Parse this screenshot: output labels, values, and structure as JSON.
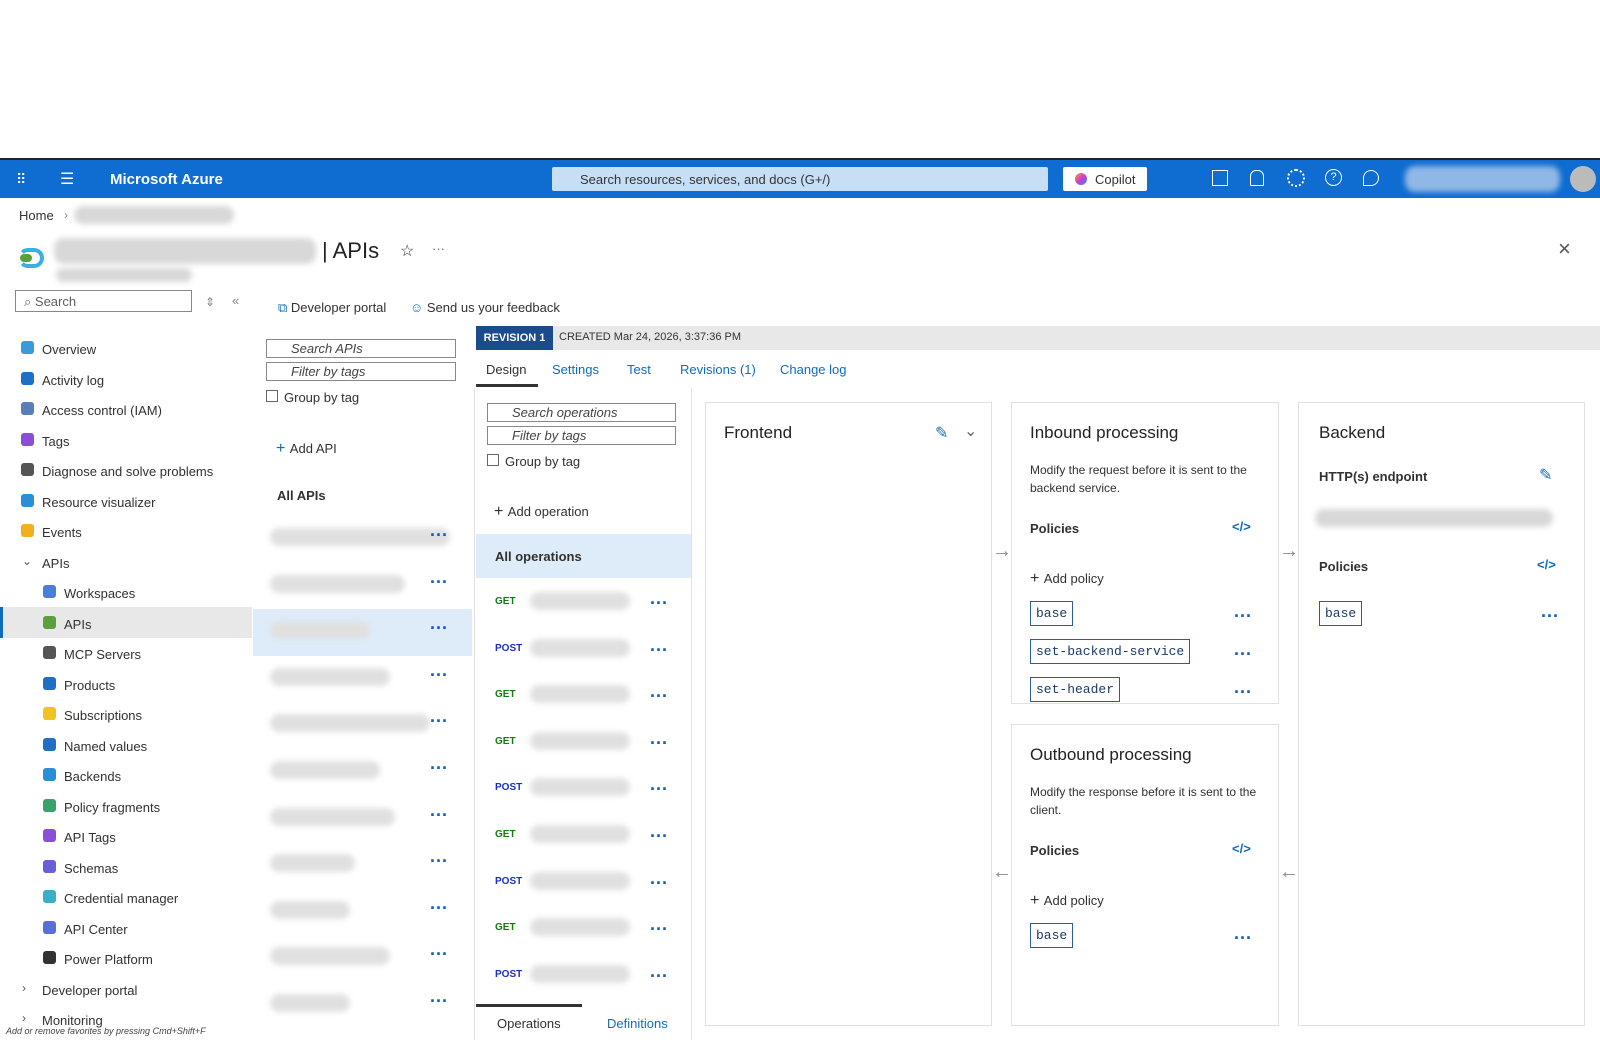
{
  "topbar": {
    "brand": "Microsoft Azure",
    "search": "Search resources, services, and docs (G+/)",
    "copilot": "Copilot"
  },
  "breadcrumb": {
    "home": "Home"
  },
  "header": {
    "title": "| APIs"
  },
  "sidebar": {
    "search": "Search",
    "items": [
      {
        "label": "Overview",
        "level": 0,
        "color": "#3a9bdc"
      },
      {
        "label": "Activity log",
        "level": 0,
        "color": "#1f6fc5"
      },
      {
        "label": "Access control (IAM)",
        "level": 0,
        "color": "#5a7fb8"
      },
      {
        "label": "Tags",
        "level": 0,
        "color": "#8a4fd6"
      },
      {
        "label": "Diagnose and solve problems",
        "level": 0,
        "color": "#555555"
      },
      {
        "label": "Resource visualizer",
        "level": 0,
        "color": "#2a8fd6"
      },
      {
        "label": "Events",
        "level": 0,
        "color": "#f2b01e"
      },
      {
        "label": "APIs",
        "level": 0,
        "color": null
      },
      {
        "label": "Workspaces",
        "level": 1,
        "color": "#4a7fd6"
      },
      {
        "label": "APIs",
        "level": 1,
        "color": "#5aa03c"
      },
      {
        "label": "MCP Servers",
        "level": 1,
        "color": "#555555"
      },
      {
        "label": "Products",
        "level": 1,
        "color": "#1f6fc5"
      },
      {
        "label": "Subscriptions",
        "level": 1,
        "color": "#f2c21e"
      },
      {
        "label": "Named values",
        "level": 1,
        "color": "#1f6fc5"
      },
      {
        "label": "Backends",
        "level": 1,
        "color": "#2a8fd6"
      },
      {
        "label": "Policy fragments",
        "level": 1,
        "color": "#3aa06c"
      },
      {
        "label": "API Tags",
        "level": 1,
        "color": "#8a4fd6"
      },
      {
        "label": "Schemas",
        "level": 1,
        "color": "#6a5fd6"
      },
      {
        "label": "Credential manager",
        "level": 1,
        "color": "#3ab0c8"
      },
      {
        "label": "API Center",
        "level": 1,
        "color": "#5a6fd6"
      },
      {
        "label": "Power Platform",
        "level": 1,
        "color": "#333333"
      },
      {
        "label": "Developer portal",
        "level": 0,
        "color": null
      },
      {
        "label": "Monitoring",
        "level": 0,
        "color": null
      }
    ],
    "footer": "Add or remove favorites by pressing Cmd+Shift+F"
  },
  "toolbar": {
    "developer_portal": "Developer portal",
    "feedback": "Send us your feedback"
  },
  "api_list": {
    "search": "Search APIs",
    "filter": "Filter by tags",
    "group": "Group by tag",
    "add": "Add API",
    "all": "All APIs"
  },
  "revision": {
    "badge": "REVISION 1",
    "created": "CREATED Mar 24, 2026, 3:37:36 PM"
  },
  "tabs": [
    "Design",
    "Settings",
    "Test",
    "Revisions (1)",
    "Change log"
  ],
  "operations": {
    "search": "Search operations",
    "filter": "Filter by tags",
    "group": "Group by tag",
    "add": "Add operation",
    "all": "All operations",
    "methods": [
      "GET",
      "POST",
      "GET",
      "GET",
      "POST",
      "GET",
      "POST",
      "GET",
      "POST"
    ],
    "bottom_tabs": [
      "Operations",
      "Definitions"
    ]
  },
  "frontend": {
    "title": "Frontend"
  },
  "inbound": {
    "title": "Inbound processing",
    "description": "Modify the request before it is sent to the backend service.",
    "policies": "Policies",
    "add": "Add policy",
    "items": [
      "base",
      "set-backend-service",
      "set-header"
    ]
  },
  "outbound": {
    "title": "Outbound processing",
    "description": "Modify the response before it is sent to the client.",
    "policies": "Policies",
    "add": "Add policy",
    "items": [
      "base"
    ]
  },
  "backend": {
    "title": "Backend",
    "endpoint": "HTTP(s) endpoint",
    "policies": "Policies",
    "items": [
      "base"
    ]
  }
}
